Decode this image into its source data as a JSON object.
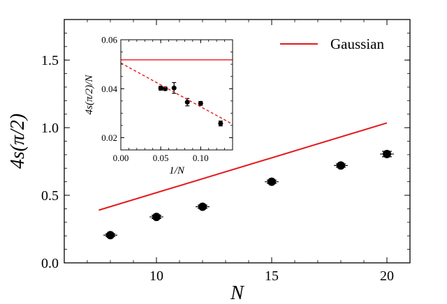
{
  "chart_data": [
    {
      "id": "main",
      "type": "scatter",
      "title": "",
      "xlabel": "N",
      "ylabel": "4s(π/2)",
      "xlim": [
        6,
        21
      ],
      "ylim": [
        0.0,
        1.8
      ],
      "xticks": [
        10,
        15,
        20
      ],
      "xtick_labels": [
        "10",
        "15",
        "20"
      ],
      "yticks": [
        0.0,
        0.5,
        1.0,
        1.5
      ],
      "ytick_labels": [
        "0.0",
        "0.5",
        "1.0",
        "1.5"
      ],
      "series": [
        {
          "name": "data",
          "kind": "points",
          "color": "#000000",
          "x": [
            8,
            10,
            12,
            15,
            18,
            20
          ],
          "y": [
            0.205,
            0.34,
            0.415,
            0.6,
            0.72,
            0.805
          ],
          "xerr": [
            0.3,
            0.3,
            0.3,
            0.3,
            0.3,
            0.3
          ],
          "yerr": [
            0.01,
            0.012,
            0.012,
            0.012,
            0.012,
            0.02
          ]
        },
        {
          "name": "Gaussian",
          "kind": "line",
          "color": "#e41a1c",
          "x": [
            7.5,
            20
          ],
          "y": [
            0.39,
            1.035
          ]
        }
      ],
      "legend": {
        "position": "top-right",
        "entries": [
          "Gaussian"
        ]
      }
    },
    {
      "id": "inset",
      "type": "scatter",
      "xlabel": "1/N",
      "ylabel": "4s(π/2)/N",
      "xlim": [
        0.0,
        0.14
      ],
      "ylim": [
        0.015,
        0.06
      ],
      "xticks": [
        0.0,
        0.05,
        0.1
      ],
      "xtick_labels": [
        "0.00",
        "0.05",
        "0.10"
      ],
      "yticks": [
        0.02,
        0.04,
        0.06
      ],
      "ytick_labels": [
        "0.02",
        "0.04",
        "0.06"
      ],
      "series": [
        {
          "name": "data",
          "kind": "points",
          "color": "#000000",
          "x": [
            0.05,
            0.0556,
            0.0667,
            0.0833,
            0.1,
            0.125
          ],
          "y": [
            0.0402,
            0.04,
            0.0403,
            0.0345,
            0.034,
            0.0258
          ],
          "yerr": [
            0.0008,
            0.0007,
            0.0022,
            0.0015,
            0.0008,
            0.001
          ]
        },
        {
          "name": "Gaussian",
          "kind": "line",
          "color": "#e41a1c",
          "x": [
            0.0,
            0.14
          ],
          "y": [
            0.0518,
            0.0518
          ]
        },
        {
          "name": "linear fit",
          "kind": "dashed-line",
          "color": "#e41a1c",
          "x": [
            0.0,
            0.14
          ],
          "y": [
            0.0505,
            0.0255
          ]
        }
      ]
    }
  ]
}
